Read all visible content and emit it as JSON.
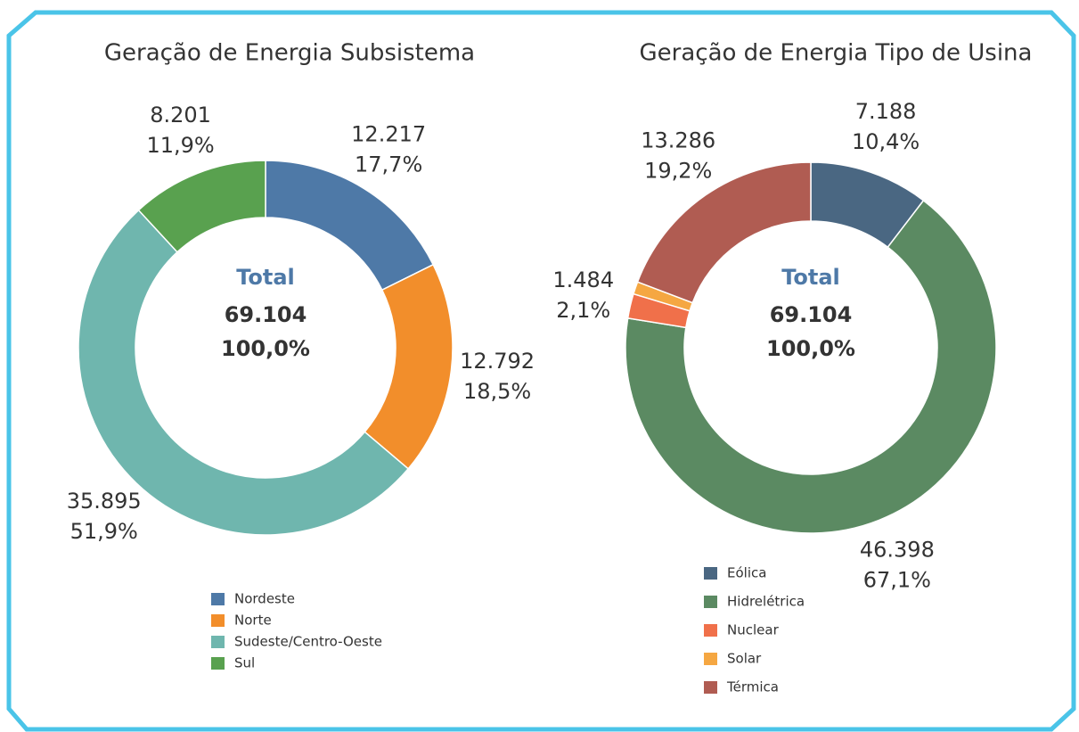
{
  "chart_data": [
    {
      "type": "donut",
      "title": "Geração de Energia Subsistema",
      "categories": [
        "Nordeste",
        "Norte",
        "Sudeste/Centro-Oeste",
        "Sul"
      ],
      "values": [
        12217,
        12792,
        35895,
        8201
      ],
      "value_labels": [
        "12.217",
        "12.792",
        "35.895",
        "8.201"
      ],
      "percent_labels": [
        "17,7%",
        "18,5%",
        "51,9%",
        "11,9%"
      ],
      "colors": [
        "#4e79a7",
        "#f28e2b",
        "#6fb6ae",
        "#59a14f"
      ],
      "center_title": "Total",
      "total": 69104,
      "total_label": "69.104",
      "total_percent_label": "100,0%"
    },
    {
      "type": "donut",
      "title": "Geração de Energia Tipo de Usina",
      "categories": [
        "Eólica",
        "Hidrelétrica",
        "Nuclear",
        "Solar",
        "Térmica"
      ],
      "values": [
        7188,
        46398,
        1484,
        748,
        13286
      ],
      "value_labels": [
        "7.188",
        "46.398",
        "1.484",
        null,
        "13.286"
      ],
      "percent_labels": [
        "10,4%",
        "67,1%",
        "2,1%",
        null,
        "19,2%"
      ],
      "colors": [
        "#4a6782",
        "#5b8a62",
        "#f0704a",
        "#f5a742",
        "#b05c52"
      ],
      "center_title": "Total",
      "total": 69104,
      "total_label": "69.104",
      "total_percent_label": "100,0%"
    }
  ]
}
